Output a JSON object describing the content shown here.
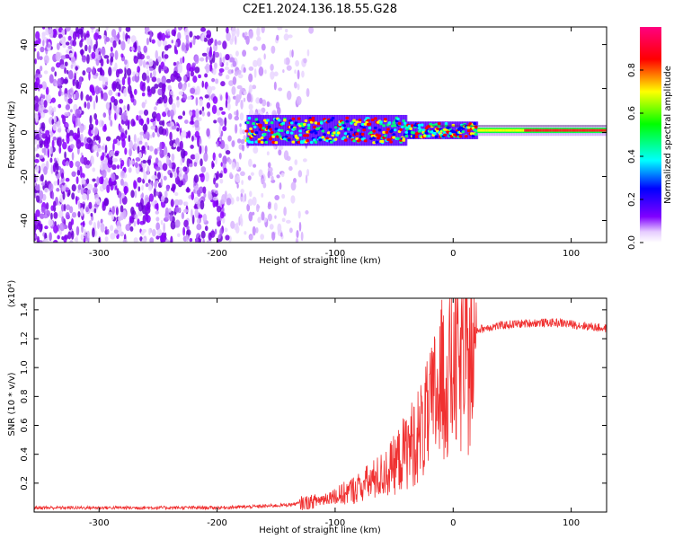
{
  "title": "C2E1.2024.136.18.55.G28",
  "chart_data": [
    {
      "type": "heatmap",
      "xlabel": "Height of straight line (km)",
      "ylabel": "Frequency (Hz)",
      "xlim": [
        -355,
        130
      ],
      "ylim": [
        -50,
        48
      ],
      "x_ticks": [
        -300,
        -200,
        -100,
        0,
        100
      ],
      "x_tick_labels": [
        "-300",
        "-200",
        "-100",
        "0",
        "100"
      ],
      "y_ticks": [
        -40,
        -20,
        0,
        20,
        40
      ],
      "y_tick_labels": [
        "-40",
        "-20",
        "0",
        "20",
        "40"
      ],
      "colorbar": {
        "label": "Normalized spectral amplitude",
        "range": [
          0,
          1
        ],
        "ticks": [
          0.0,
          0.2,
          0.4,
          0.6,
          0.8
        ],
        "tick_labels": [
          "0.0",
          "0.2",
          "0.4",
          "0.6",
          "0.8"
        ],
        "colormap": "rainbow-magenta-to-purple"
      },
      "features": {
        "noise_region_x": [
          -355,
          -120
        ],
        "carrier_start_x": -175,
        "carrier_frequency": 1,
        "strong_carrier_start_x": 20
      }
    },
    {
      "type": "line",
      "xlabel": "Height of straight line (km)",
      "ylabel": "SNR (10 * v/v)",
      "scale_label": "(x10⁴)",
      "xlim": [
        -355,
        130
      ],
      "ylim": [
        0,
        1.48
      ],
      "x_ticks": [
        -300,
        -200,
        -100,
        0,
        100
      ],
      "x_tick_labels": [
        "-300",
        "-200",
        "-100",
        "0",
        "100"
      ],
      "y_ticks": [
        0.2,
        0.4,
        0.6,
        0.8,
        1.0,
        1.2,
        1.4
      ],
      "y_tick_labels": [
        "0.2",
        "0.4",
        "0.6",
        "0.8",
        "1.0",
        "1.2",
        "1.4"
      ],
      "series": [
        {
          "color": "#f03030",
          "x": [
            -355,
            -300,
            -250,
            -200,
            -180,
            -160,
            -140,
            -120,
            -110,
            -100,
            -90,
            -80,
            -70,
            -60,
            -50,
            -40,
            -30,
            -20,
            -15,
            -10,
            -5,
            0,
            10,
            20,
            30,
            50,
            70,
            90,
            100,
            110,
            130
          ],
          "y": [
            0.03,
            0.03,
            0.03,
            0.03,
            0.035,
            0.04,
            0.05,
            0.07,
            0.09,
            0.12,
            0.16,
            0.2,
            0.25,
            0.3,
            0.38,
            0.5,
            0.62,
            0.78,
            0.95,
            1.05,
            1.12,
            1.18,
            1.22,
            1.26,
            1.28,
            1.3,
            1.31,
            1.31,
            1.3,
            1.29,
            1.27
          ]
        }
      ]
    }
  ]
}
